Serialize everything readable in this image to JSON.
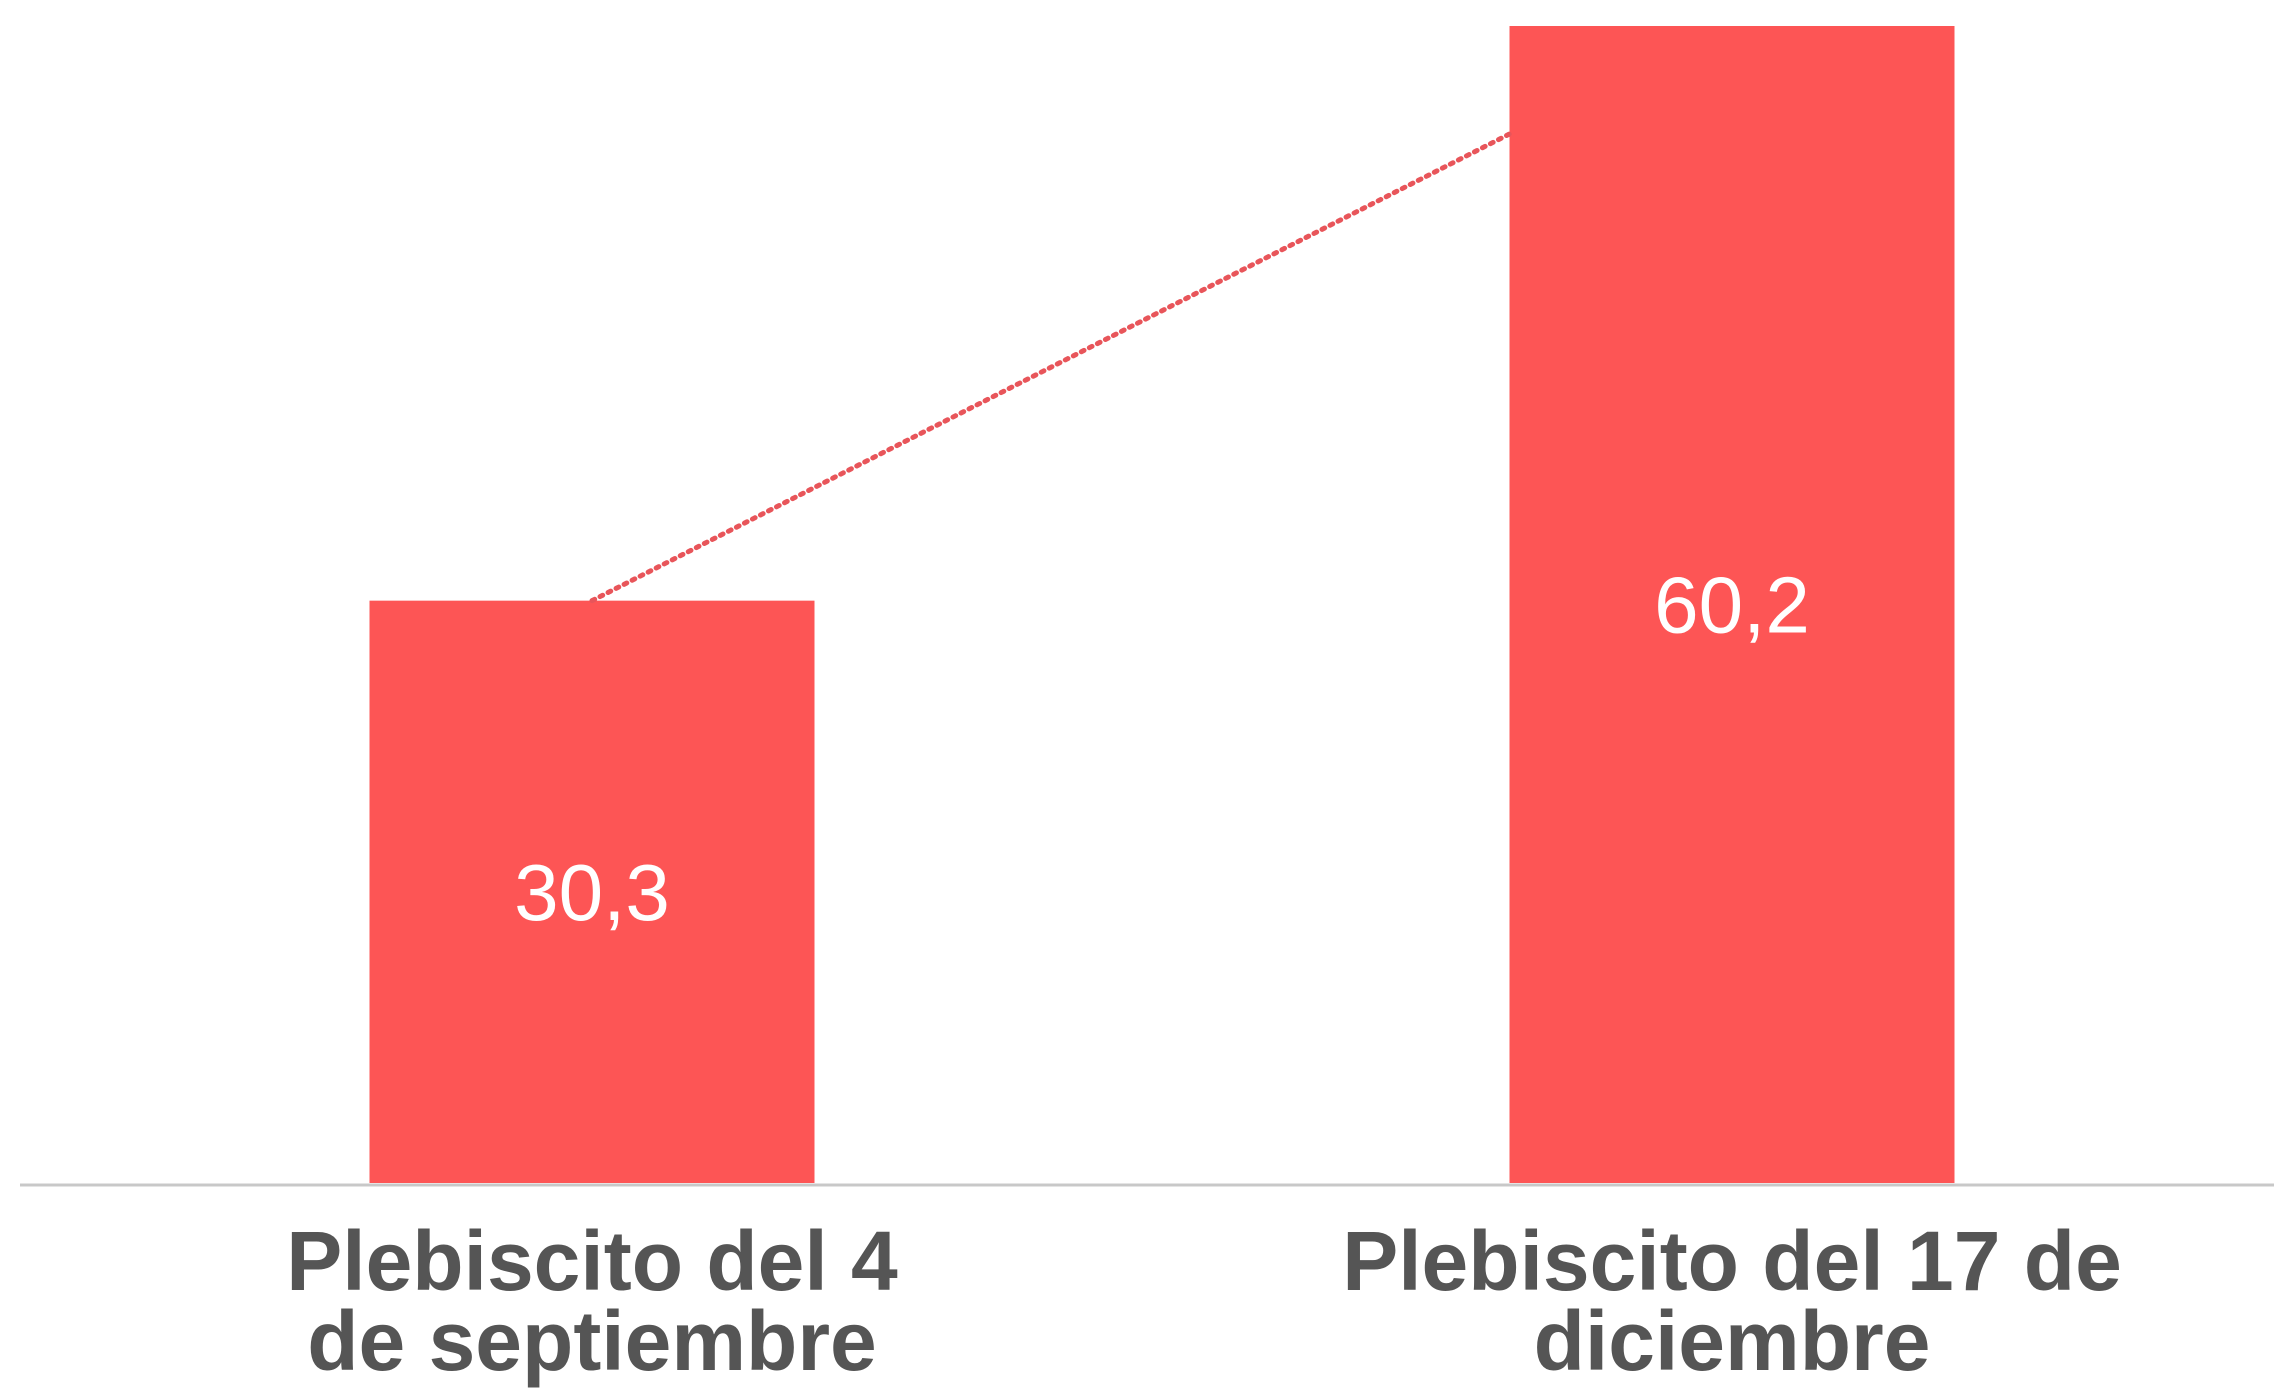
{
  "chart_data": {
    "type": "bar",
    "categories": [
      [
        "Plebiscito del 4",
        "de septiembre"
      ],
      [
        "Plebiscito del 17 de",
        "diciembre"
      ]
    ],
    "values": [
      30.3,
      60.2
    ],
    "value_labels": [
      "30,3",
      "60,2"
    ],
    "title": "",
    "xlabel": "",
    "ylabel": "",
    "ylim": [
      0,
      60.2
    ],
    "grid": false,
    "legend": "none",
    "connector_line": "dotted",
    "colors": {
      "bar": "#fd5555",
      "connector": "#e8555a",
      "baseline": "#c8c8c8",
      "value_text": "#ffffff",
      "tick_text": "#555555"
    }
  }
}
